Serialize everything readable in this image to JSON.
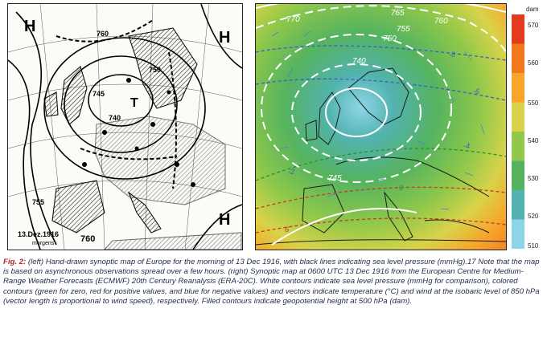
{
  "left_map": {
    "pressure_labels": [
      "H",
      "H",
      "H",
      "T",
      "760",
      "750",
      "745",
      "740",
      "755",
      "760"
    ],
    "date_label": "13.Dez.1916",
    "time_label": "morgens"
  },
  "right_map": {
    "isobar_labels": [
      "770",
      "765",
      "760",
      "755",
      "750",
      "740",
      "745"
    ],
    "temperature_labels": [
      "-8",
      "-6",
      "-4",
      "0",
      "6",
      "-2"
    ]
  },
  "colorbar": {
    "unit": "dam",
    "ticks": [
      "570",
      "560",
      "550",
      "540",
      "530",
      "520",
      "510"
    ],
    "colors": [
      "#e33b1f",
      "#f2791f",
      "#f7a62b",
      "#d8d34a",
      "#8fc84a",
      "#55b35f",
      "#52b3b0",
      "#8ed6e6"
    ]
  },
  "caption": {
    "label": "Fig. 2:",
    "text": " (left) Hand-drawn synoptic map of Europe for the morning of 13 Dec 1916, with black lines indicating sea level pressure (mmHg).17 Note that the map is based on asynchronous observations spread over a few hours. (right) Synoptic map at 0600 UTC 13 Dec 1916 from the European Centre for Medium-Range Weather Forecasts (ECMWF) 20th Century Reanalysis (ERA-20C). White contours indicate sea level pressure (mmHg for comparison), colored contours (green for zero, red for positive values, and blue for negative values) and vectors indicate temperature (°C) and wind at the isobaric level of 850 hPa (vector length is proportional to wind speed), respectively. Filled contours indicate geopotential height at 500 hPa (dam)."
  }
}
